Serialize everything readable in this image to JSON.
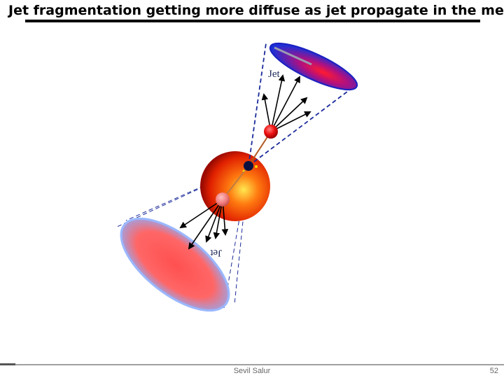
{
  "slide": {
    "title": "Jet fragmentation getting more diffuse as jet propagate in the medium?"
  },
  "diagram": {
    "jet_upper_label": "Jet",
    "jet_lower_label": "Jet",
    "colors": {
      "medium": "#e82a00",
      "medium_core": "#ffe040",
      "upper_parton": "#ee1111",
      "lower_parton": "#f08080",
      "vertex": "#0a1040",
      "cone_line": "#1a2a9a",
      "upper_detector": "#2233cc",
      "lower_detector": "#ff6060"
    }
  },
  "footer": {
    "author": "Sevil Salur",
    "page_number": "52"
  }
}
